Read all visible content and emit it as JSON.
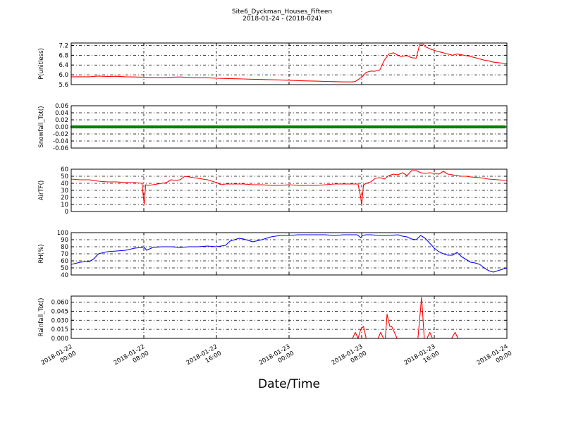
{
  "title": "Site6_Dyckman_Houses_Fifteen",
  "subtitle": "2018-01-24 - (2018-024)",
  "xlabel": "Date/Time",
  "x_ticks": [
    {
      "x": 0,
      "date": "2018-01-22",
      "time": "00:00"
    },
    {
      "x": 8,
      "date": "2018-01-22",
      "time": "08:00"
    },
    {
      "x": 16,
      "date": "2018-01-22",
      "time": "16:00"
    },
    {
      "x": 24,
      "date": "2018-01-23",
      "time": "00:00"
    },
    {
      "x": 32,
      "date": "2018-01-23",
      "time": "08:00"
    },
    {
      "x": 40,
      "date": "2018-01-23",
      "time": "16:00"
    },
    {
      "x": 48,
      "date": "2018-01-24",
      "time": "00:00"
    }
  ],
  "chart_data": [
    {
      "type": "line",
      "ylabel": "P(unitless)",
      "x_unit": "hours since 2018-01-22 00:00",
      "xlim": [
        0,
        48
      ],
      "ylim": [
        5.6,
        7.3
      ],
      "yticks": [
        "5.6",
        "6.0",
        "6.4",
        "6.8",
        "7.2"
      ],
      "grid": true,
      "color": "#ff0000",
      "series": [
        {
          "x": [
            0,
            2,
            3,
            4,
            5,
            6,
            7,
            8,
            9,
            10,
            11,
            12,
            13,
            14,
            15,
            16,
            17,
            18,
            19,
            20,
            21,
            22,
            23,
            24,
            25,
            26,
            27,
            28,
            29,
            30,
            31,
            31.3,
            32,
            32.5,
            33,
            33.5,
            34,
            34.5,
            35,
            35.5,
            36,
            36.3,
            37,
            37.5,
            38,
            38.4,
            38.8,
            39,
            39.3,
            39.6,
            40,
            40.4,
            40.8,
            41.2,
            42,
            42.5,
            43,
            43.5,
            44,
            44.5,
            45,
            45.5,
            46,
            46.5,
            47,
            48
          ],
          "y": [
            5.92,
            5.92,
            5.95,
            5.93,
            5.94,
            5.92,
            5.91,
            5.9,
            5.89,
            5.88,
            5.9,
            5.91,
            5.89,
            5.88,
            5.88,
            5.86,
            5.85,
            5.84,
            5.83,
            5.82,
            5.81,
            5.8,
            5.79,
            5.78,
            5.76,
            5.75,
            5.74,
            5.73,
            5.72,
            5.71,
            5.71,
            5.73,
            5.9,
            6.1,
            6.15,
            6.15,
            6.2,
            6.6,
            6.85,
            6.9,
            6.8,
            6.75,
            6.78,
            6.7,
            6.68,
            7.25,
            7.25,
            7.15,
            7.1,
            7.05,
            7.0,
            6.95,
            6.92,
            6.88,
            6.8,
            6.85,
            6.82,
            6.78,
            6.75,
            6.7,
            6.65,
            6.6,
            6.57,
            6.52,
            6.5,
            6.45
          ]
        }
      ]
    },
    {
      "type": "scatter",
      "ylabel": "Snowfall_Tot()",
      "xlim": [
        0,
        48
      ],
      "ylim": [
        -0.06,
        0.06
      ],
      "yticks": [
        "-0.06",
        "-0.04",
        "-0.02",
        "0.00",
        "0.02",
        "0.04",
        "0.06"
      ],
      "grid": true,
      "color": "#008000",
      "series": [
        {
          "constant": 0.0,
          "x_range": [
            0,
            48
          ]
        }
      ]
    },
    {
      "type": "line",
      "ylabel": "AirTF()",
      "xlim": [
        0,
        48
      ],
      "ylim": [
        0,
        60
      ],
      "yticks": [
        "0",
        "10",
        "20",
        "30",
        "40",
        "50",
        "60"
      ],
      "grid": true,
      "color": "#ff0000",
      "series": [
        {
          "x": [
            0,
            1,
            2,
            3,
            4,
            5,
            6,
            7,
            7.8,
            7.95,
            8.05,
            8.2,
            8.5,
            9,
            10,
            10.5,
            11,
            11.5,
            12,
            12.5,
            13,
            13.5,
            14,
            15,
            15.5,
            16,
            16.5,
            17,
            18,
            19,
            20,
            21,
            22,
            23,
            24,
            25,
            26,
            27,
            28,
            29,
            30,
            31,
            31.6,
            31.9,
            32.0,
            32.2,
            32.5,
            33,
            33.5,
            34,
            34.5,
            35,
            35.5,
            36,
            36.5,
            37,
            37.5,
            38,
            38.5,
            39,
            39.5,
            40,
            40.5,
            41,
            41.5,
            42,
            42.5,
            43,
            43.5,
            44,
            45,
            46,
            47,
            48
          ],
          "y": [
            46,
            45,
            45,
            43,
            42,
            42,
            41,
            41,
            40,
            20,
            10,
            38,
            37,
            38,
            40,
            41,
            45,
            44,
            45,
            50,
            49,
            48,
            47,
            45,
            43,
            41,
            38,
            39,
            39,
            39,
            38,
            38,
            37,
            37,
            38,
            37,
            37,
            37,
            38,
            39,
            39,
            39,
            39,
            20,
            9,
            38,
            40,
            42,
            47,
            48,
            46,
            51,
            53,
            52,
            55,
            51,
            58,
            58,
            55,
            54,
            55,
            54,
            53,
            57,
            53,
            52,
            51,
            50,
            50,
            49,
            48,
            46,
            45,
            44
          ]
        }
      ]
    },
    {
      "type": "line",
      "ylabel": "RH(%)",
      "xlim": [
        0,
        48
      ],
      "ylim": [
        40,
        100
      ],
      "yticks": [
        "40",
        "50",
        "60",
        "70",
        "80",
        "90",
        "100"
      ],
      "grid": true,
      "color": "#0000ff",
      "series": [
        {
          "x": [
            0,
            1,
            1.5,
            2,
            2.5,
            3,
            4,
            5,
            6,
            7,
            7.8,
            8,
            8.3,
            9,
            10,
            11,
            12,
            13,
            14,
            15,
            16,
            16.5,
            17,
            17.5,
            18,
            18.5,
            19,
            20,
            21,
            22,
            23,
            24,
            25,
            26,
            27,
            28,
            29,
            30,
            31,
            31.5,
            31.9,
            32.1,
            32.5,
            33,
            34,
            35,
            36,
            36.5,
            37,
            37.5,
            38,
            38.5,
            39,
            39.5,
            40,
            40.5,
            41,
            41.5,
            42,
            42.5,
            43,
            43.5,
            44,
            44.5,
            45,
            45.5,
            46,
            46.5,
            47,
            48
          ],
          "y": [
            55,
            58,
            59,
            59,
            63,
            70,
            73,
            74,
            75,
            78,
            79,
            80,
            75,
            79,
            80,
            80,
            79,
            80,
            80,
            81,
            80,
            81,
            82,
            88,
            90,
            92,
            91,
            87,
            90,
            94,
            96,
            96,
            97,
            97,
            97,
            97,
            96,
            97,
            97,
            97,
            93,
            96,
            97,
            97,
            96,
            96,
            97,
            95,
            94,
            91,
            90,
            96,
            92,
            85,
            78,
            73,
            70,
            68,
            68,
            72,
            66,
            62,
            58,
            57,
            55,
            50,
            46,
            44,
            46,
            50
          ]
        }
      ]
    },
    {
      "type": "line",
      "ylabel": "Rainfall_Tot()",
      "xlim": [
        0,
        48
      ],
      "ylim": [
        0,
        0.07
      ],
      "yticks": [
        "0.000",
        "0.015",
        "0.030",
        "0.045",
        "0.060"
      ],
      "grid": true,
      "color": "#ff0000",
      "series": [
        {
          "x": [
            0,
            31.0,
            31.3,
            31.6,
            31.9,
            32.2,
            32.5,
            33.0,
            33.8,
            34.1,
            34.4,
            34.6,
            34.8,
            35.1,
            35.3,
            35.6,
            35.9,
            36.2,
            38.2,
            38.6,
            38.9,
            39.2,
            39.5,
            39.8,
            40.1,
            41.5,
            41.9,
            42.3,
            42.6,
            48
          ],
          "y": [
            0,
            0,
            0.01,
            0.0,
            0.015,
            0.02,
            0.0,
            0.0,
            0.0,
            0.01,
            0.0,
            0.0,
            0.04,
            0.02,
            0.02,
            0.01,
            0.0,
            0.0,
            0.0,
            0.068,
            0.0,
            0.0,
            0.01,
            0.0,
            0.0,
            0.0,
            0.0,
            0.01,
            0.0,
            0
          ]
        }
      ]
    }
  ]
}
